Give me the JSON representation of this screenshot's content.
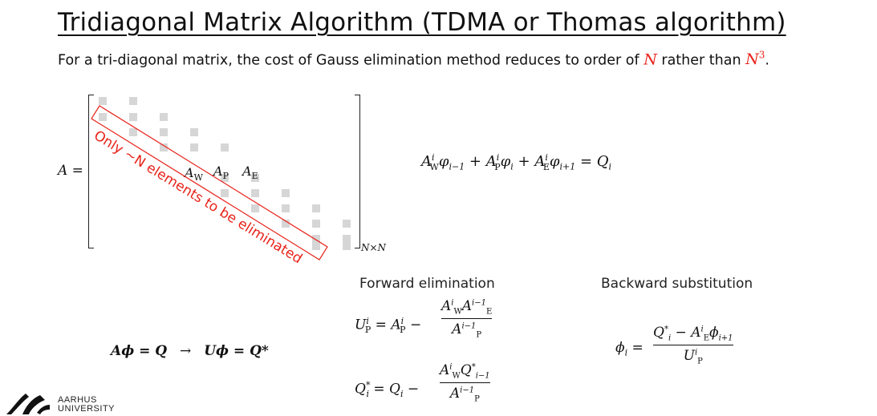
{
  "title": "Tridiagonal Matrix Algorithm (TDMA or Thomas algorithm)",
  "subtitle": {
    "prefix": "For a tri-diagonal matrix, the cost of Gauss elimination method reduces to order of ",
    "n_symbol": "N",
    "middle": " rather than ",
    "n3_symbol": "N",
    "n3_exp": "3",
    "suffix": "."
  },
  "matrix": {
    "lhs": "A =",
    "aw": "A",
    "aw_sub": "W",
    "ap": "A",
    "ap_sub": "P",
    "ae": "A",
    "ae_sub": "E",
    "size_label": "N×N",
    "annotation": "Only ~N elements to be eliminated"
  },
  "equation_main": "AⁱWφi−1 + AⁱPφi + AⁱEφi+1 = Qi",
  "system_eq": {
    "lhs": "Aϕ = Q",
    "arrow": "→",
    "rhs": "Uϕ = Q*"
  },
  "forward": {
    "heading": "Forward elimination",
    "eq1_lhs": "U",
    "eq1_sup": "i",
    "eq1_sub": "P",
    "eq1_mid": "= A",
    "eq1_num": "AⁱW Aⁱ⁻¹E",
    "eq1_den": "Aⁱ⁻¹P",
    "eq2_lhs": "Q",
    "eq2_sup": "*",
    "eq2_sub": "i",
    "eq2_mid": "= Q",
    "eq2_num": "AⁱW Q*i−1",
    "eq2_den": "Aⁱ⁻¹P"
  },
  "backward": {
    "heading": "Backward substitution",
    "lhs": "ϕ",
    "lhs_sub": "i",
    "eq": "=",
    "num": "Q*i − AⁱE ϕi+1",
    "den": "UⁱP"
  },
  "logo": {
    "line1": "AARHUS",
    "line2": "UNIVERSITY"
  },
  "colors": {
    "accent_red": "#e8231a",
    "square_gray": "#d6d6d6"
  }
}
